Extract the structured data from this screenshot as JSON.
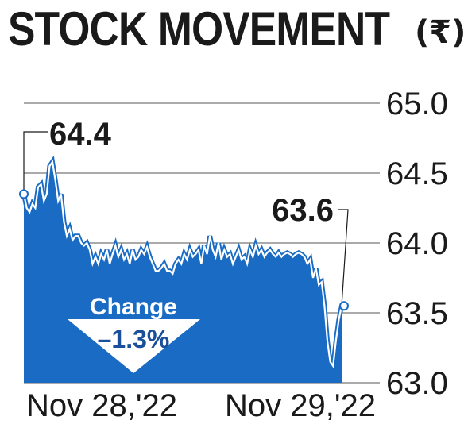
{
  "title": "STOCK MOVEMENT",
  "unit": "(₹)",
  "change": {
    "label": "Change",
    "value": "–1.3%"
  },
  "colors": {
    "area": "#1a6bc4",
    "line": "#ffffff",
    "text": "#1a1a1a",
    "grid": "#555555",
    "arrow": "#ffffff"
  },
  "chart_data": {
    "type": "area",
    "title": "STOCK MOVEMENT",
    "ylabel": "",
    "xlabel": "",
    "ylim": [
      63.0,
      65.0
    ],
    "yticks": [
      "65.0",
      "64.5",
      "64.0",
      "63.5",
      "63.0"
    ],
    "xticks": [
      "Nov 28,'22",
      "Nov 29,'22"
    ],
    "grid": true,
    "annotations": [
      {
        "text": "64.4",
        "x": 0,
        "y": 64.35
      },
      {
        "text": "63.6",
        "x": 111,
        "y": 63.55
      }
    ],
    "x": [
      0,
      1,
      2,
      3,
      4,
      5,
      6,
      7,
      8,
      9,
      10,
      11,
      12,
      13,
      14,
      15,
      16,
      17,
      18,
      19,
      20,
      21,
      22,
      23,
      24,
      25,
      26,
      27,
      28,
      29,
      30,
      31,
      32,
      33,
      34,
      35,
      36,
      37,
      38,
      39,
      40,
      41,
      42,
      43,
      44,
      45,
      46,
      47,
      48,
      49,
      50,
      51,
      52,
      53,
      54,
      55,
      56,
      57,
      58,
      59,
      60,
      61,
      62,
      63,
      64,
      65,
      66,
      67,
      68,
      69,
      70,
      71,
      72,
      73,
      74,
      75,
      76,
      77,
      78,
      79,
      80,
      81,
      82,
      83,
      84,
      85,
      86,
      87,
      88,
      89,
      90,
      91,
      92,
      93,
      94,
      95,
      96,
      97,
      98,
      99,
      100,
      101,
      102,
      103,
      104,
      105,
      106,
      107,
      108,
      109,
      110,
      111
    ],
    "values": [
      64.35,
      64.25,
      64.22,
      64.28,
      64.25,
      64.4,
      64.42,
      64.3,
      64.35,
      64.55,
      64.58,
      64.45,
      64.3,
      64.35,
      64.15,
      64.05,
      64.1,
      64.02,
      64.05,
      64.05,
      64.0,
      63.98,
      64.0,
      63.95,
      63.85,
      63.9,
      63.85,
      63.92,
      63.88,
      63.95,
      63.85,
      63.92,
      63.98,
      63.9,
      63.95,
      63.88,
      63.92,
      63.85,
      63.95,
      63.88,
      63.9,
      63.95,
      63.92,
      63.97,
      63.9,
      63.85,
      63.8,
      63.8,
      63.82,
      63.85,
      63.8,
      63.8,
      63.78,
      63.85,
      63.88,
      63.85,
      63.92,
      63.88,
      63.95,
      63.9,
      63.92,
      63.95,
      63.85,
      63.98,
      63.92,
      64.05,
      63.95,
      63.9,
      64.0,
      63.88,
      63.95,
      63.9,
      63.92,
      63.85,
      63.9,
      63.95,
      63.88,
      63.9,
      63.85,
      63.95,
      63.9,
      63.98,
      63.92,
      63.95,
      63.9,
      63.93,
      63.95,
      63.92,
      63.9,
      63.93,
      63.9,
      63.92,
      63.93,
      63.92,
      63.9,
      63.92,
      63.93,
      63.92,
      63.9,
      63.85,
      63.88,
      63.75,
      63.82,
      63.7,
      63.72,
      63.55,
      63.3,
      63.15,
      63.12,
      63.3,
      63.45,
      63.55
    ]
  }
}
